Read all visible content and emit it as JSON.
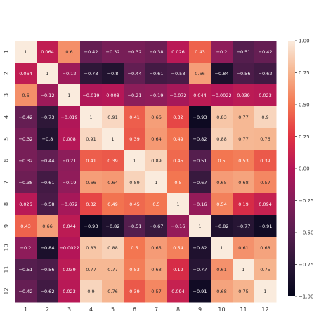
{
  "chart_data": {
    "type": "heatmap",
    "title": "",
    "xlabel": "",
    "ylabel": "",
    "x_labels": [
      "1",
      "2",
      "3",
      "4",
      "5",
      "6",
      "7",
      "8",
      "9",
      "10",
      "11",
      "12"
    ],
    "y_labels": [
      "1",
      "2",
      "3",
      "4",
      "5",
      "6",
      "7",
      "8",
      "9",
      "10",
      "11",
      "12"
    ],
    "values": [
      [
        1,
        0.064,
        0.6,
        -0.42,
        -0.32,
        -0.32,
        -0.38,
        0.026,
        0.43,
        -0.2,
        -0.51,
        -0.42
      ],
      [
        0.064,
        1,
        -0.12,
        -0.73,
        -0.8,
        -0.44,
        -0.61,
        -0.58,
        0.66,
        -0.84,
        -0.56,
        -0.62
      ],
      [
        0.6,
        -0.12,
        1,
        -0.019,
        0.008,
        -0.21,
        -0.19,
        -0.072,
        0.044,
        -0.0022,
        0.039,
        0.023
      ],
      [
        -0.42,
        -0.73,
        -0.019,
        1,
        0.91,
        0.41,
        0.66,
        0.32,
        -0.93,
        0.83,
        0.77,
        0.9
      ],
      [
        -0.32,
        -0.8,
        0.008,
        0.91,
        1,
        0.39,
        0.64,
        0.49,
        -0.82,
        0.88,
        0.77,
        0.76
      ],
      [
        -0.32,
        -0.44,
        -0.21,
        0.41,
        0.39,
        1,
        0.89,
        0.45,
        -0.51,
        0.5,
        0.53,
        0.39
      ],
      [
        -0.38,
        -0.61,
        -0.19,
        0.66,
        0.64,
        0.89,
        1,
        0.5,
        -0.67,
        0.65,
        0.68,
        0.57
      ],
      [
        0.026,
        -0.58,
        -0.072,
        0.32,
        0.49,
        0.45,
        0.5,
        1,
        -0.16,
        0.54,
        0.19,
        0.094
      ],
      [
        0.43,
        0.66,
        0.044,
        -0.93,
        -0.82,
        -0.51,
        -0.67,
        -0.16,
        1,
        -0.82,
        -0.77,
        -0.91
      ],
      [
        -0.2,
        -0.84,
        -0.0022,
        0.83,
        0.88,
        0.5,
        0.65,
        0.54,
        -0.82,
        1,
        0.61,
        0.68
      ],
      [
        -0.51,
        -0.56,
        0.039,
        0.77,
        0.77,
        0.53,
        0.68,
        0.19,
        -0.77,
        0.61,
        1,
        0.75
      ],
      [
        -0.42,
        -0.62,
        0.023,
        0.9,
        0.76,
        0.39,
        0.57,
        0.094,
        -0.91,
        0.68,
        0.75,
        1
      ]
    ],
    "vmin": -1,
    "vmax": 1,
    "colormap": "rocket",
    "colorbar_ticks": [
      -1.0,
      -0.75,
      -0.5,
      -0.25,
      0.0,
      0.25,
      0.5,
      0.75,
      1.0
    ],
    "colorbar_tick_labels": [
      "−1.00",
      "−0.75",
      "−0.50",
      "−0.25",
      "0.00",
      "0.25",
      "0.50",
      "0.75",
      "1.00"
    ],
    "colormap_stops": [
      "#03051a",
      "#2a1636",
      "#571e4f",
      "#841e5a",
      "#b41658",
      "#e13342",
      "#f37651",
      "#f6b48e",
      "#faebdd"
    ],
    "grid": false,
    "legend": "colorbar-right"
  }
}
